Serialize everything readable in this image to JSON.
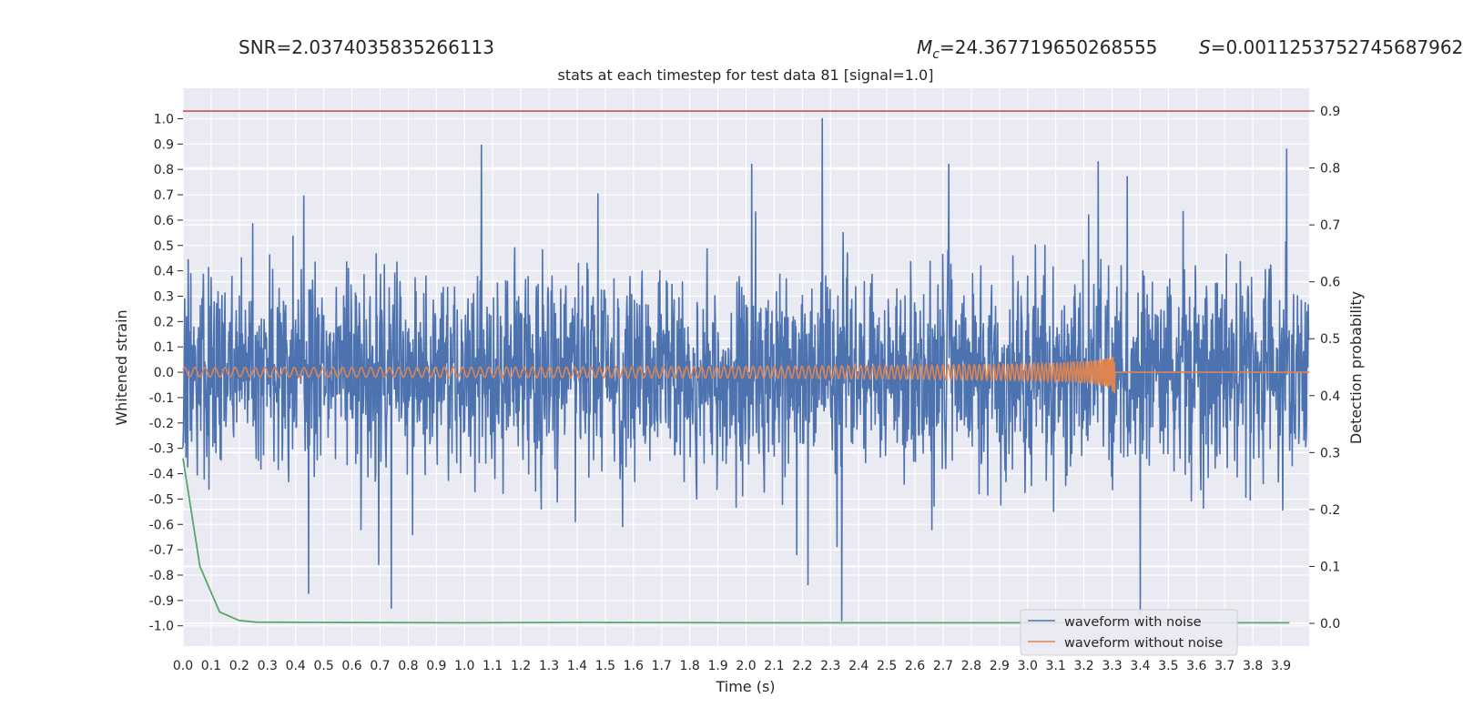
{
  "header": {
    "snr": "SNR=2.0374035835266113",
    "mc_symbol": "M",
    "mc_sub": "c",
    "mc_value": "=24.367719650268555",
    "s_symbol": "S",
    "s_value": "=0.0011253752745687962"
  },
  "chart_data": {
    "type": "line",
    "title": "stats at each timestep for test data 81 [signal=1.0]",
    "xlabel": "Time (s)",
    "ylabel": "Whitened strain",
    "y2label": "Detection probability",
    "xlim": [
      0,
      4.0
    ],
    "ylim": [
      -1.08,
      1.12
    ],
    "y2lim": [
      -0.04,
      0.94
    ],
    "x_ticks": [
      "0.0",
      "0.1",
      "0.2",
      "0.3",
      "0.4",
      "0.5",
      "0.6",
      "0.7",
      "0.8",
      "0.9",
      "1.0",
      "1.1",
      "1.2",
      "1.3",
      "1.4",
      "1.5",
      "1.6",
      "1.7",
      "1.8",
      "1.9",
      "2.0",
      "2.1",
      "2.2",
      "2.3",
      "2.4",
      "2.5",
      "2.6",
      "2.7",
      "2.8",
      "2.9",
      "3.0",
      "3.1",
      "3.2",
      "3.3",
      "3.4",
      "3.5",
      "3.6",
      "3.7",
      "3.8",
      "3.9"
    ],
    "y_ticks": [
      "1.0",
      "0.9",
      "0.8",
      "0.7",
      "0.6",
      "0.5",
      "0.4",
      "0.3",
      "0.2",
      "0.1",
      "0.0",
      "-0.1",
      "-0.2",
      "-0.3",
      "-0.4",
      "-0.5",
      "-0.6",
      "-0.7",
      "-0.8",
      "-0.9",
      "-1.0"
    ],
    "y2_ticks": [
      "0.9",
      "0.8",
      "0.7",
      "0.6",
      "0.5",
      "0.4",
      "0.3",
      "0.2",
      "0.1",
      "0.0"
    ],
    "grid": true,
    "legend_position": "lower-right",
    "legend": [
      {
        "label": "waveform with noise",
        "color": "#4c72b0"
      },
      {
        "label": "waveform without noise",
        "color": "#dd8452"
      }
    ],
    "threshold_line": {
      "y2": 0.9,
      "color": "#c44e52"
    },
    "series": [
      {
        "label": "waveform with noise",
        "color": "#4c72b0",
        "noise_y_range": [
          -1.0,
          1.0
        ],
        "peaks": [
          {
            "x": 2.27,
            "y": 1.0
          },
          {
            "x": 2.34,
            "y": -0.98
          },
          {
            "x": 3.92,
            "y": 0.88
          },
          {
            "x": 2.02,
            "y": 0.82
          },
          {
            "x": 2.72,
            "y": 0.82
          },
          {
            "x": 3.25,
            "y": 0.83
          },
          {
            "x": 3.4,
            "y": -0.95
          },
          {
            "x": 0.74,
            "y": -0.93
          }
        ]
      },
      {
        "label": "waveform without noise",
        "color": "#dd8452",
        "chirp_end_x": 3.31,
        "max_amplitude": 0.1
      },
      {
        "color": "#55a868",
        "axis": "y2",
        "points": [
          [
            0.0,
            0.29
          ],
          [
            0.06,
            0.1
          ],
          [
            0.13,
            0.02
          ],
          [
            0.2,
            0.005
          ],
          [
            0.26,
            0.002
          ],
          [
            0.5,
            0.0015
          ],
          [
            1.0,
            0.001
          ],
          [
            1.4,
            0.0015
          ],
          [
            2.0,
            0.001
          ],
          [
            3.0,
            0.001
          ],
          [
            3.93,
            0.001
          ]
        ]
      }
    ]
  }
}
